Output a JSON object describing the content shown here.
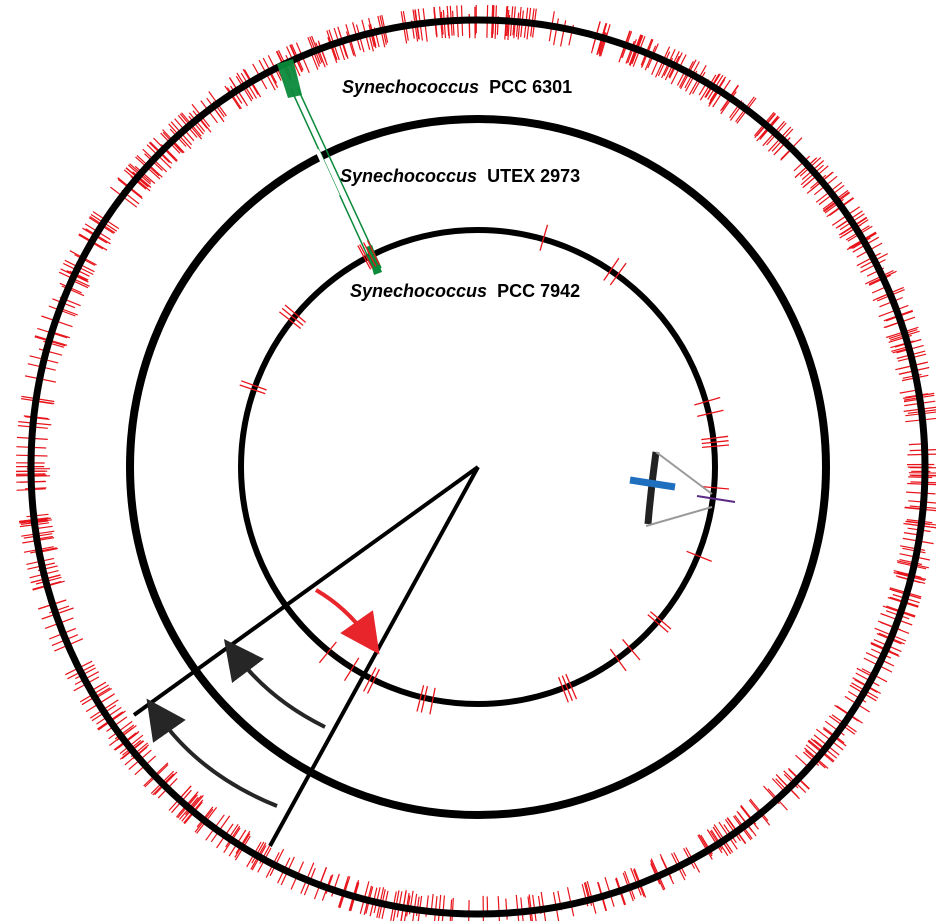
{
  "rings": [
    {
      "id": "outer",
      "genus": "Synechococcus",
      "strain": "PCC 6301"
    },
    {
      "id": "middle",
      "genus": "Synechococcus",
      "strain": "UTEX 2973"
    },
    {
      "id": "inner",
      "genus": "Synechococcus",
      "strain": "PCC 7942"
    }
  ],
  "colors": {
    "backbone": "#000000",
    "snp_mark": "#e8141b",
    "shared_region": "#0a8a3a",
    "link": "#0a8a3a",
    "highlight_bar": "#1f6fbf",
    "arrow_red": "#e8252b",
    "arrow_dark": "#262626",
    "zoom_lines": "#999999",
    "inner_tick": "#5b2a86"
  },
  "arrows": [
    {
      "name": "red-arrow",
      "color_key": "arrow_red"
    },
    {
      "name": "dark-arrow-1",
      "color_key": "arrow_dark"
    },
    {
      "name": "dark-arrow-2",
      "color_key": "arrow_dark"
    }
  ],
  "legend_icons": [
    "rotation-arrow-icon"
  ]
}
